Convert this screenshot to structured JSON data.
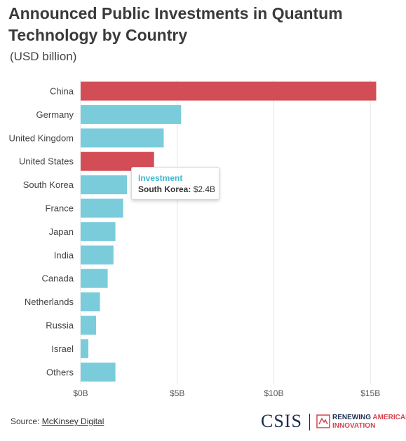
{
  "title": "Announced Public Investments in Quantum Technology by Country",
  "subtitle": "(USD billion)",
  "colors": {
    "highlight": "#d34d56",
    "default": "#7accdb",
    "grid": "#e6e6e6"
  },
  "chart_data": {
    "type": "bar",
    "orientation": "horizontal",
    "categories": [
      "China",
      "Germany",
      "United Kingdom",
      "United States",
      "South Korea",
      "France",
      "Japan",
      "India",
      "Canada",
      "Netherlands",
      "Russia",
      "Israel",
      "Others"
    ],
    "values": [
      15.3,
      5.2,
      4.3,
      3.8,
      2.4,
      2.2,
      1.8,
      1.7,
      1.4,
      1.0,
      0.8,
      0.4,
      1.8
    ],
    "highlighted": [
      "China",
      "United States"
    ],
    "xlim": [
      0,
      15.5
    ],
    "xticks": [
      0,
      5,
      10,
      15
    ],
    "xtick_labels": [
      "$0B",
      "$5B",
      "$10B",
      "$15B"
    ],
    "grid": "vertical",
    "series": [
      {
        "name": "Investment"
      }
    ]
  },
  "tooltip": {
    "series": "Investment",
    "label": "South Korea:",
    "value": "$2.4B"
  },
  "footer": {
    "source_prefix": "Source:",
    "source_link": "McKinsey Digital",
    "logo_csis": "CSIS",
    "logo_ra_line1a": "RENEWING",
    "logo_ra_line1b": "AMERICAN",
    "logo_ra_line2": "INNOVATION"
  }
}
